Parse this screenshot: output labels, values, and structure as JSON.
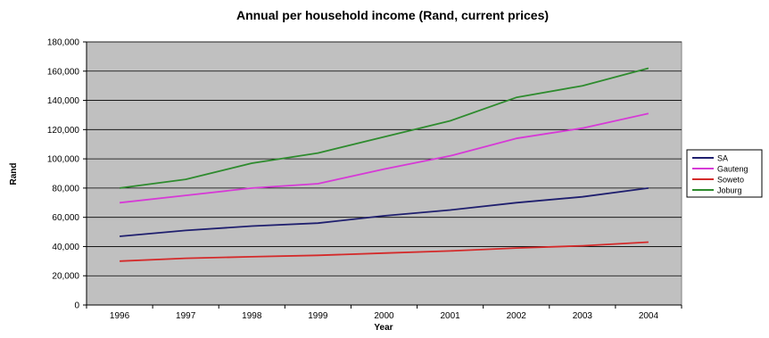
{
  "chart_data": {
    "type": "line",
    "title": "Annual per household income (Rand, current prices)",
    "xlabel": "Year",
    "ylabel": "Rand",
    "categories": [
      "1996",
      "1997",
      "1998",
      "1999",
      "2000",
      "2001",
      "2002",
      "2003",
      "2004"
    ],
    "y_ticks": [
      "0",
      "20,000",
      "40,000",
      "60,000",
      "80,000",
      "100,000",
      "120,000",
      "140,000",
      "160,000",
      "180,000"
    ],
    "ylim": [
      0,
      180000
    ],
    "grid": true,
    "legend_position": "right",
    "plot_background": "#c0c0c0",
    "series": [
      {
        "name": "SA",
        "color": "#1f1f6e",
        "values": [
          47000,
          51000,
          54000,
          56000,
          61000,
          65000,
          70000,
          74000,
          80000
        ]
      },
      {
        "name": "Gauteng",
        "color": "#d63ad6",
        "values": [
          70000,
          75000,
          80000,
          83000,
          93000,
          102000,
          114000,
          121000,
          131000
        ]
      },
      {
        "name": "Soweto",
        "color": "#d42a2a",
        "values": [
          30000,
          32000,
          33000,
          34000,
          35500,
          37000,
          39000,
          40500,
          43000
        ]
      },
      {
        "name": "Joburg",
        "color": "#2e8b2e",
        "values": [
          80000,
          86000,
          97000,
          104000,
          115000,
          126000,
          142000,
          150000,
          162000
        ]
      }
    ]
  }
}
